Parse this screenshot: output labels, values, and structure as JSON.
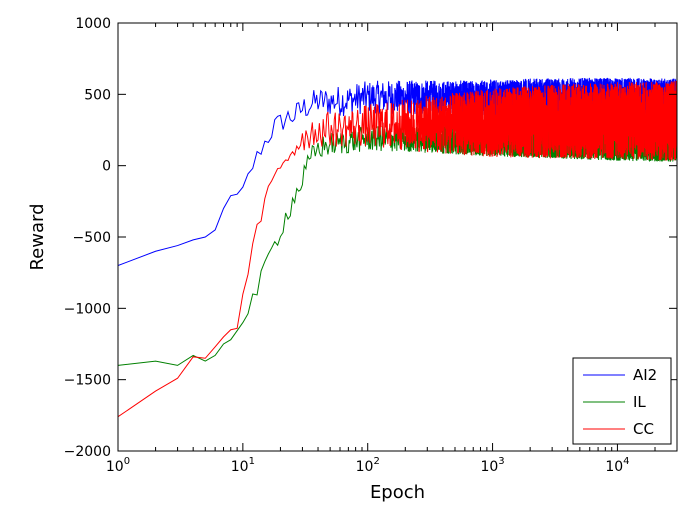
{
  "chart_data": {
    "type": "line",
    "title": "",
    "xlabel": "Epoch",
    "ylabel": "Reward",
    "xscale": "log",
    "xlim": [
      1,
      30000
    ],
    "ylim": [
      -2000,
      1000
    ],
    "grid": false,
    "legend_position": "lower-right",
    "x_ticks": [
      {
        "value": 1,
        "base": "10",
        "exp": "0"
      },
      {
        "value": 10,
        "base": "10",
        "exp": "1"
      },
      {
        "value": 100,
        "base": "10",
        "exp": "2"
      },
      {
        "value": 1000,
        "base": "10",
        "exp": "3"
      },
      {
        "value": 10000,
        "base": "10",
        "exp": "4"
      }
    ],
    "y_ticks": [
      {
        "value": 1000,
        "label": "1000"
      },
      {
        "value": 500,
        "label": "500"
      },
      {
        "value": 0,
        "label": "0"
      },
      {
        "value": -500,
        "label": "−500"
      },
      {
        "value": -1000,
        "label": "−1000"
      },
      {
        "value": -1500,
        "label": "−1500"
      },
      {
        "value": -2000,
        "label": "−2000"
      }
    ],
    "series": [
      {
        "name": "AI2",
        "color": "#0000ff",
        "points": [
          [
            1,
            -700
          ],
          [
            2,
            -600
          ],
          [
            3,
            -560
          ],
          [
            4,
            -520
          ],
          [
            5,
            -500
          ],
          [
            6,
            -450
          ],
          [
            7,
            -300
          ],
          [
            8,
            -210
          ],
          [
            9,
            -200
          ],
          [
            10,
            -150
          ],
          [
            12,
            0
          ],
          [
            14,
            120
          ],
          [
            16,
            200
          ],
          [
            18,
            280
          ],
          [
            20,
            300
          ],
          [
            23,
            340
          ],
          [
            26,
            350
          ],
          [
            30,
            400
          ],
          [
            35,
            430
          ],
          [
            40,
            450
          ],
          [
            50,
            450
          ],
          [
            70,
            460
          ],
          [
            100,
            480
          ],
          [
            200,
            480
          ],
          [
            500,
            470
          ],
          [
            1000,
            475
          ],
          [
            3000,
            480
          ],
          [
            10000,
            480
          ],
          [
            30000,
            470
          ]
        ],
        "noise": [
          [
            1,
            0
          ],
          [
            10,
            0
          ],
          [
            12,
            60
          ],
          [
            30,
            90
          ],
          [
            60,
            110
          ],
          [
            200,
            120
          ],
          [
            1000,
            130
          ],
          [
            30000,
            140
          ]
        ]
      },
      {
        "name": "IL",
        "color": "#008000",
        "points": [
          [
            1,
            -1400
          ],
          [
            2,
            -1370
          ],
          [
            3,
            -1400
          ],
          [
            4,
            -1330
          ],
          [
            5,
            -1370
          ],
          [
            6,
            -1330
          ],
          [
            7,
            -1250
          ],
          [
            8,
            -1220
          ],
          [
            10,
            -1100
          ],
          [
            12,
            -950
          ],
          [
            14,
            -800
          ],
          [
            16,
            -650
          ],
          [
            18,
            -550
          ],
          [
            20,
            -450
          ],
          [
            23,
            -320
          ],
          [
            26,
            -220
          ],
          [
            30,
            -100
          ],
          [
            35,
            50
          ],
          [
            40,
            120
          ],
          [
            50,
            150
          ],
          [
            70,
            170
          ],
          [
            100,
            190
          ],
          [
            300,
            185
          ],
          [
            1000,
            165
          ],
          [
            3000,
            155
          ],
          [
            10000,
            140
          ],
          [
            30000,
            135
          ]
        ],
        "noise": [
          [
            1,
            0
          ],
          [
            10,
            0
          ],
          [
            12,
            60
          ],
          [
            30,
            80
          ],
          [
            100,
            90
          ],
          [
            1000,
            100
          ],
          [
            30000,
            110
          ]
        ]
      },
      {
        "name": "CC",
        "color": "#ff0000",
        "points": [
          [
            1,
            -1760
          ],
          [
            2,
            -1580
          ],
          [
            3,
            -1490
          ],
          [
            4,
            -1340
          ],
          [
            5,
            -1350
          ],
          [
            6,
            -1270
          ],
          [
            7,
            -1200
          ],
          [
            8,
            -1150
          ],
          [
            9,
            -1140
          ],
          [
            10,
            -900
          ],
          [
            12,
            -600
          ],
          [
            14,
            -350
          ],
          [
            16,
            -200
          ],
          [
            18,
            -100
          ],
          [
            20,
            0
          ],
          [
            23,
            80
          ],
          [
            26,
            130
          ],
          [
            30,
            200
          ],
          [
            35,
            230
          ],
          [
            40,
            250
          ],
          [
            60,
            260
          ],
          [
            100,
            280
          ],
          [
            300,
            290
          ],
          [
            1000,
            300
          ],
          [
            3000,
            310
          ],
          [
            10000,
            315
          ],
          [
            30000,
            315
          ]
        ],
        "noise": [
          [
            1,
            0
          ],
          [
            10,
            0
          ],
          [
            12,
            60
          ],
          [
            30,
            110
          ],
          [
            100,
            150
          ],
          [
            300,
            200
          ],
          [
            1000,
            240
          ],
          [
            3000,
            260
          ],
          [
            30000,
            280
          ]
        ]
      }
    ]
  }
}
